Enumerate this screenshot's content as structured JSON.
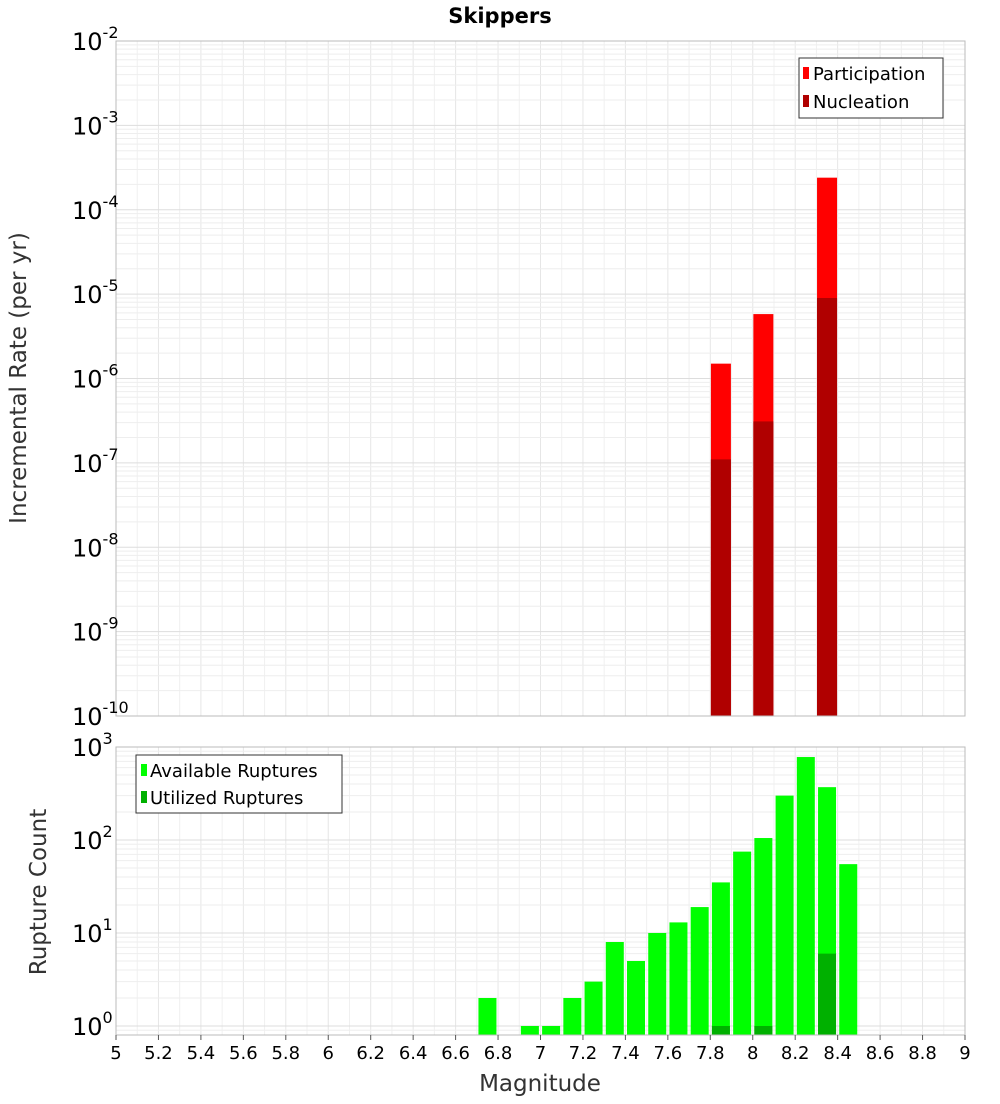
{
  "title": "Skippers",
  "chart_data": [
    {
      "type": "bar",
      "panel": "rates",
      "ylabel": "Incremental Rate (per yr)",
      "yscale": "log",
      "ylim": [
        1e-10,
        0.01
      ],
      "xlim": [
        5,
        9
      ],
      "grid": true,
      "legend_position": "top-right",
      "y_ticks": [
        {
          "base": "10",
          "exp": "-10"
        },
        {
          "base": "10",
          "exp": "-9"
        },
        {
          "base": "10",
          "exp": "-8"
        },
        {
          "base": "10",
          "exp": "-7"
        },
        {
          "base": "10",
          "exp": "-6"
        },
        {
          "base": "10",
          "exp": "-5"
        },
        {
          "base": "10",
          "exp": "-4"
        },
        {
          "base": "10",
          "exp": "-3"
        },
        {
          "base": "10",
          "exp": "-2"
        }
      ],
      "series": [
        {
          "name": "Participation",
          "color": "#ff0000",
          "points": [
            {
              "x": 7.85,
              "y": 1.5e-06
            },
            {
              "x": 8.05,
              "y": 5.8e-06
            },
            {
              "x": 8.35,
              "y": 0.00024
            }
          ]
        },
        {
          "name": "Nucleation",
          "color": "#b00000",
          "points": [
            {
              "x": 7.85,
              "y": 1.1e-07
            },
            {
              "x": 8.05,
              "y": 3.1e-07
            },
            {
              "x": 8.35,
              "y": 9e-06
            }
          ]
        }
      ]
    },
    {
      "type": "bar",
      "panel": "counts",
      "xlabel": "Magnitude",
      "ylabel": "Rupture Count",
      "yscale": "log",
      "ylim": [
        0.8,
        1000
      ],
      "xlim": [
        5,
        9
      ],
      "grid": true,
      "legend_position": "top-left",
      "x_ticks": [
        "5",
        "5.2",
        "5.4",
        "5.6",
        "5.8",
        "6",
        "6.2",
        "6.4",
        "6.6",
        "6.8",
        "7",
        "7.2",
        "7.4",
        "7.6",
        "7.8",
        "8",
        "8.2",
        "8.4",
        "8.6",
        "8.8",
        "9"
      ],
      "y_ticks": [
        {
          "base": "10",
          "exp": "0"
        },
        {
          "base": "10",
          "exp": "1"
        },
        {
          "base": "10",
          "exp": "2"
        },
        {
          "base": "10",
          "exp": "3"
        }
      ],
      "series": [
        {
          "name": "Available Ruptures",
          "color": "#00ff00",
          "points": [
            {
              "x": 6.75,
              "y": 2
            },
            {
              "x": 6.95,
              "y": 1
            },
            {
              "x": 7.05,
              "y": 1
            },
            {
              "x": 7.15,
              "y": 2
            },
            {
              "x": 7.25,
              "y": 3
            },
            {
              "x": 7.35,
              "y": 8
            },
            {
              "x": 7.45,
              "y": 5
            },
            {
              "x": 7.55,
              "y": 10
            },
            {
              "x": 7.65,
              "y": 13
            },
            {
              "x": 7.75,
              "y": 19
            },
            {
              "x": 7.85,
              "y": 35
            },
            {
              "x": 7.95,
              "y": 75
            },
            {
              "x": 8.05,
              "y": 105
            },
            {
              "x": 8.15,
              "y": 300
            },
            {
              "x": 8.25,
              "y": 780
            },
            {
              "x": 8.35,
              "y": 370
            },
            {
              "x": 8.45,
              "y": 55
            }
          ]
        },
        {
          "name": "Utilized Ruptures",
          "color": "#00b000",
          "points": [
            {
              "x": 7.85,
              "y": 1
            },
            {
              "x": 8.05,
              "y": 1
            },
            {
              "x": 8.35,
              "y": 6
            }
          ]
        }
      ]
    }
  ]
}
